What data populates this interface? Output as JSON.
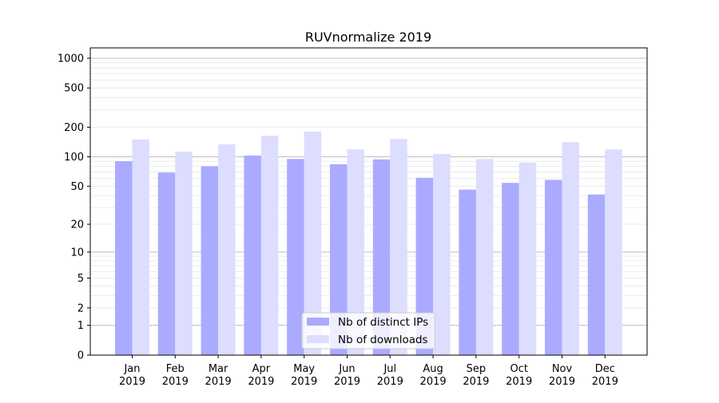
{
  "chart_data": {
    "type": "bar",
    "title": "RUVnormalize 2019",
    "xlabel": "",
    "ylabel": "",
    "yscale": "log10(1+y)",
    "ylim": [
      0,
      1300
    ],
    "yticks": [
      0,
      1,
      2,
      5,
      10,
      20,
      50,
      100,
      200,
      500,
      1000
    ],
    "grid": true,
    "legend_position": "bottom-center",
    "categories": [
      "Jan\n2019",
      "Feb\n2019",
      "Mar\n2019",
      "Apr\n2019",
      "May\n2019",
      "Jun\n2019",
      "Jul\n2019",
      "Aug\n2019",
      "Sep\n2019",
      "Oct\n2019",
      "Nov\n2019",
      "Dec\n2019"
    ],
    "series": [
      {
        "name": "Nb of distinct IPs",
        "color": "#aaaaff",
        "values": [
          90,
          69,
          80,
          103,
          95,
          84,
          94,
          61,
          46,
          54,
          58,
          41
        ]
      },
      {
        "name": "Nb of downloads",
        "color": "#ddddff",
        "values": [
          150,
          113,
          134,
          164,
          180,
          119,
          152,
          107,
          95,
          87,
          141,
          119
        ]
      }
    ]
  }
}
